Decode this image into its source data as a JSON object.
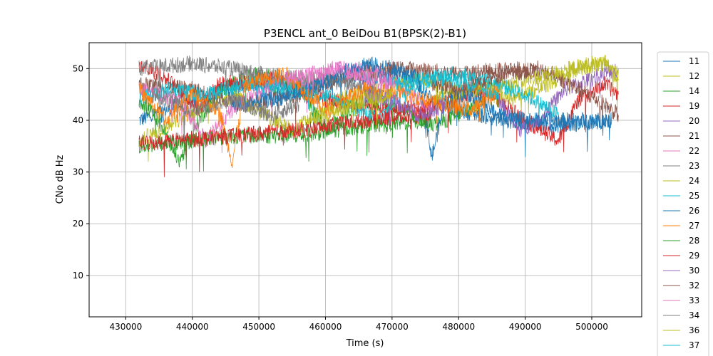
{
  "chart_data": {
    "type": "line",
    "title": "P3ENCL ant_0 BeiDou B1(BPSK(2)-B1)",
    "xlabel": "Time (s)",
    "ylabel": "CNo dB Hz",
    "xlim": [
      424500,
      507500
    ],
    "ylim": [
      2,
      55
    ],
    "xticks": [
      430000,
      440000,
      450000,
      460000,
      470000,
      480000,
      490000,
      500000
    ],
    "yticks": [
      10,
      20,
      30,
      40,
      50
    ],
    "grid": true,
    "legend": "right, outside plot (clipped at bottom)",
    "series": [
      {
        "name": "11",
        "color": "#1f77b4",
        "points": [
          [
            432000,
            40
          ],
          [
            440000,
            44
          ],
          [
            448000,
            47
          ],
          [
            456000,
            46
          ],
          [
            464000,
            48
          ],
          [
            472000,
            49
          ],
          [
            476000,
            44
          ],
          [
            480000,
            42
          ],
          [
            487000,
            40
          ],
          [
            495000,
            39
          ],
          [
            503000,
            40
          ]
        ]
      },
      {
        "name": "12",
        "color": "#bcbd22",
        "points": [
          [
            432000,
            36
          ],
          [
            438000,
            40
          ],
          [
            446000,
            45
          ],
          [
            455000,
            38
          ],
          [
            462000,
            44
          ],
          [
            468000,
            46
          ],
          [
            474000,
            48
          ],
          [
            480000,
            46
          ],
          [
            486000,
            44
          ],
          [
            492000,
            46
          ],
          [
            498000,
            50
          ],
          [
            502000,
            51
          ],
          [
            504000,
            48
          ]
        ]
      },
      {
        "name": "14",
        "color": "#2ca02c",
        "points": [
          [
            432000,
            44
          ],
          [
            435000,
            40
          ],
          [
            438000,
            32
          ],
          [
            441000,
            40
          ],
          [
            444000,
            46
          ],
          [
            450000,
            49
          ],
          [
            456000,
            47
          ],
          [
            460000,
            38
          ],
          [
            466000,
            44
          ],
          [
            472000,
            42
          ],
          [
            476000,
            39
          ],
          [
            480000,
            41
          ],
          [
            484000,
            44
          ]
        ]
      },
      {
        "name": "19",
        "color": "#d62728",
        "points": [
          [
            432000,
            51
          ],
          [
            435000,
            49
          ],
          [
            438000,
            46
          ],
          [
            441000,
            42
          ],
          [
            444000,
            47
          ],
          [
            452000,
            48
          ],
          [
            460000,
            44
          ],
          [
            468000,
            42
          ],
          [
            476000,
            43
          ],
          [
            484000,
            46
          ],
          [
            490000,
            40
          ],
          [
            495000,
            36
          ],
          [
            498000,
            44
          ],
          [
            502000,
            47
          ],
          [
            504000,
            45
          ]
        ]
      },
      {
        "name": "20",
        "color": "#9467bd",
        "points": [
          [
            486000,
            44
          ],
          [
            489000,
            38
          ],
          [
            492000,
            40
          ],
          [
            496000,
            46
          ],
          [
            500000,
            48
          ],
          [
            504000,
            50
          ]
        ]
      },
      {
        "name": "21",
        "color": "#8c564b",
        "points": [
          [
            432000,
            47
          ],
          [
            440000,
            46
          ],
          [
            448000,
            43
          ],
          [
            456000,
            45
          ],
          [
            464000,
            49
          ],
          [
            472000,
            50
          ],
          [
            480000,
            49
          ],
          [
            488000,
            50
          ],
          [
            494000,
            49
          ],
          [
            498000,
            46
          ],
          [
            502000,
            43
          ],
          [
            504000,
            41
          ]
        ]
      },
      {
        "name": "22",
        "color": "#e377c2",
        "points": [
          [
            432000,
            46
          ],
          [
            438000,
            44
          ],
          [
            442000,
            36
          ],
          [
            446000,
            42
          ],
          [
            452000,
            47
          ],
          [
            458000,
            48
          ],
          [
            462000,
            50
          ],
          [
            468000,
            49
          ],
          [
            472000,
            46
          ],
          [
            476000,
            42
          ]
        ]
      },
      {
        "name": "23",
        "color": "#7f7f7f",
        "points": [
          [
            432000,
            50
          ],
          [
            440000,
            51
          ],
          [
            446000,
            50
          ],
          [
            450000,
            49
          ],
          [
            458000,
            48
          ],
          [
            464000,
            47
          ],
          [
            470000,
            45
          ]
        ]
      },
      {
        "name": "24",
        "color": "#bcbd22",
        "points": [
          [
            476000,
            44
          ],
          [
            482000,
            46
          ],
          [
            488000,
            47
          ],
          [
            494000,
            49
          ],
          [
            500000,
            51
          ],
          [
            504000,
            50
          ]
        ]
      },
      {
        "name": "25",
        "color": "#17becf",
        "points": [
          [
            432000,
            44
          ],
          [
            436000,
            46
          ],
          [
            442000,
            45
          ],
          [
            448000,
            47
          ],
          [
            456000,
            46
          ],
          [
            462000,
            44
          ],
          [
            468000,
            40
          ],
          [
            472000,
            46
          ],
          [
            478000,
            49
          ],
          [
            484000,
            48
          ],
          [
            490000,
            45
          ],
          [
            495000,
            41
          ]
        ]
      },
      {
        "name": "26",
        "color": "#1f77b4",
        "points": [
          [
            446000,
            43
          ],
          [
            452000,
            44
          ],
          [
            458000,
            46
          ],
          [
            462000,
            49
          ],
          [
            466000,
            51
          ],
          [
            470000,
            50
          ],
          [
            474000,
            48
          ],
          [
            476000,
            33
          ],
          [
            478000,
            44
          ],
          [
            482000,
            45
          ],
          [
            486000,
            41
          ],
          [
            490000,
            40
          ],
          [
            495000,
            40
          ],
          [
            503000,
            40
          ]
        ]
      },
      {
        "name": "27",
        "color": "#ff7f0e",
        "points": [
          [
            432000,
            46
          ],
          [
            436000,
            40
          ],
          [
            440000,
            45
          ],
          [
            444000,
            42
          ],
          [
            446000,
            32
          ],
          [
            448000,
            47
          ],
          [
            454000,
            49
          ],
          [
            460000,
            42
          ],
          [
            466000,
            46
          ],
          [
            472000,
            45
          ],
          [
            478000,
            43
          ],
          [
            482000,
            42
          ],
          [
            486000,
            46
          ]
        ]
      },
      {
        "name": "28",
        "color": "#2ca02c",
        "points": [
          [
            432000,
            35
          ],
          [
            446000,
            37
          ],
          [
            456000,
            37
          ],
          [
            466000,
            39
          ],
          [
            476000,
            40
          ]
        ]
      },
      {
        "name": "29",
        "color": "#d62728",
        "points": [
          [
            432000,
            35.5
          ],
          [
            446000,
            37
          ],
          [
            456000,
            38
          ],
          [
            466000,
            40
          ],
          [
            476000,
            41
          ]
        ]
      },
      {
        "name": "30",
        "color": "#9467bd",
        "points": [
          [
            466000,
            45
          ],
          [
            470000,
            44
          ],
          [
            474000,
            41
          ],
          [
            478000,
            43
          ]
        ]
      },
      {
        "name": "32",
        "color": "#8c564b",
        "points": [
          [
            476000,
            47
          ],
          [
            480000,
            46
          ],
          [
            484000,
            48
          ],
          [
            488000,
            49
          ],
          [
            492000,
            50
          ]
        ]
      },
      {
        "name": "33",
        "color": "#e377c2",
        "points": [
          [
            454000,
            48
          ],
          [
            458000,
            49
          ],
          [
            462000,
            50
          ],
          [
            466000,
            48
          ],
          [
            470000,
            47
          ]
        ]
      },
      {
        "name": "34",
        "color": "#7f7f7f",
        "points": [
          [
            434000,
            45
          ],
          [
            440000,
            42
          ],
          [
            446000,
            44
          ],
          [
            452000,
            41
          ],
          [
            456000,
            43
          ]
        ]
      },
      {
        "name": "36",
        "color": "#bcbd22",
        "points": [
          [
            458000,
            40
          ],
          [
            462000,
            42
          ],
          [
            466000,
            44
          ],
          [
            470000,
            45
          ]
        ]
      },
      {
        "name": "37",
        "color": "#17becf",
        "points": [
          [
            470000,
            47
          ],
          [
            474000,
            48
          ],
          [
            478000,
            48
          ],
          [
            482000,
            47
          ],
          [
            486000,
            45
          ]
        ]
      }
    ]
  }
}
